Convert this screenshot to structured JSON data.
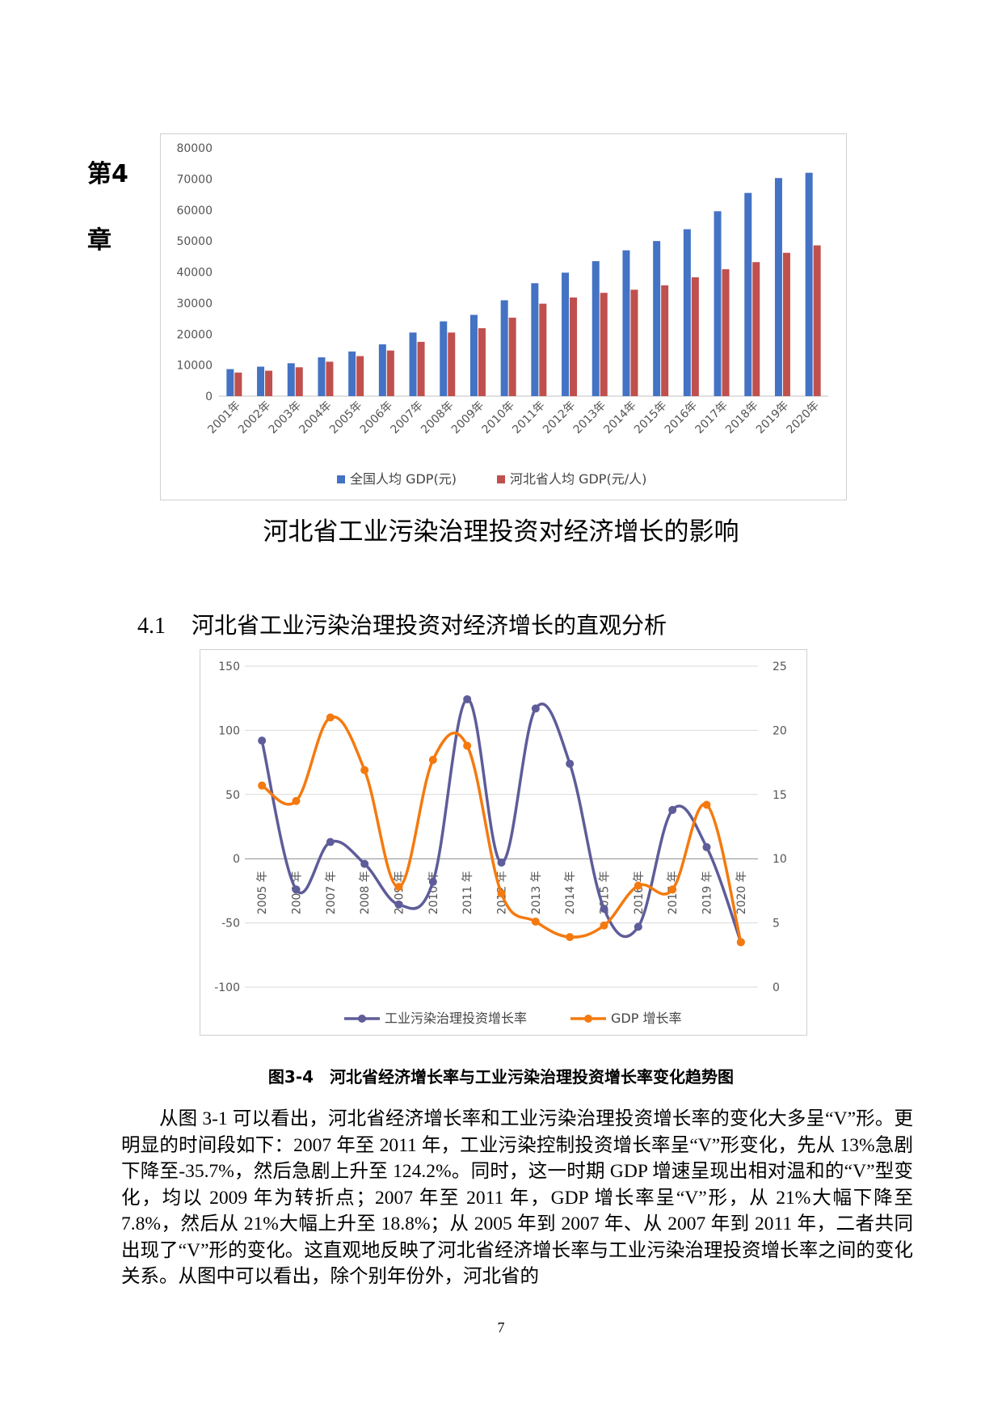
{
  "chapter_label": {
    "line1": "第4",
    "line2": "章"
  },
  "chapter_title": "河北省工业污染治理投资对经济增长的影响",
  "section": {
    "number": "4.1",
    "title": "河北省工业污染治理投资对经济增长的直观分析"
  },
  "figure_caption": "图3-4　河北省经济增长率与工业污染治理投资增长率变化趋势图",
  "body_paragraph": "从图 3-1 可以看出，河北省经济增长率和工业污染治理投资增长率的变化大多呈“V”形。更明显的时间段如下：2007 年至 2011 年，工业污染控制投资增长率呈“V”形变化，先从 13%急剧下降至-35.7%，然后急剧上升至 124.2%。同时，这一时期 GDP 增速呈现出相对温和的“V”型变化，均以 2009 年为转折点；2007 年至 2011 年，GDP 增长率呈“V”形，从 21%大幅下降至 7.8%，然后从 21%大幅上升至 18.8%；从 2005 年到 2007 年、从 2007 年到 2011 年，二者共同出现了“V”形的变化。这直观地反映了河北省经济增长率与工业污染治理投资增长率之间的变化关系。从图中可以看出，除个别年份外，河北省的",
  "page_number": "7",
  "colors": {
    "blue": "#4472C4",
    "red": "#C0504D",
    "purple": "#5E5C99",
    "orange": "#F47A0F",
    "grid": "#d9d9d9"
  },
  "chart_data": [
    {
      "type": "bar",
      "categories": [
        "2001年",
        "2002年",
        "2003年",
        "2004年",
        "2005年",
        "2006年",
        "2007年",
        "2008年",
        "2009年",
        "2010年",
        "2011年",
        "2012年",
        "2013年",
        "2014年",
        "2015年",
        "2016年",
        "2017年",
        "2018年",
        "2019年",
        "2020年"
      ],
      "series": [
        {
          "name": "全国人均 GDP(元)",
          "values": [
            8700,
            9500,
            10600,
            12500,
            14400,
            16700,
            20500,
            24100,
            26200,
            30900,
            36400,
            39800,
            43500,
            47000,
            50000,
            53800,
            59600,
            65500,
            70300,
            72000
          ]
        },
        {
          "name": "河北省人均 GDP(元/人)",
          "values": [
            7600,
            8200,
            9300,
            11100,
            12900,
            14700,
            17500,
            20500,
            21900,
            25300,
            29800,
            31800,
            33300,
            34300,
            35700,
            38300,
            40900,
            43200,
            46200,
            48600
          ]
        }
      ],
      "yticks": [
        "0",
        "10000",
        "20000",
        "30000",
        "40000",
        "50000",
        "60000",
        "70000",
        "80000"
      ],
      "ylim": [
        0,
        80000
      ],
      "legend": "bottom"
    },
    {
      "type": "line",
      "categories": [
        "2005 年",
        "2006 年",
        "2007 年",
        "2008 年",
        "2009 年",
        "2010 年",
        "2011 年",
        "2012 年",
        "2013 年",
        "2014 年",
        "2015 年",
        "2016 年",
        "2017 年",
        "2019 年",
        "2020 年"
      ],
      "series": [
        {
          "name": "工业污染治理投资增长率",
          "axis": "left",
          "values": [
            92,
            -24,
            13,
            -4,
            -35.7,
            -18,
            124.2,
            -3,
            117,
            74,
            -39,
            -53,
            38,
            9,
            -65
          ]
        },
        {
          "name": "GDP 增长率",
          "axis": "right",
          "values": [
            15.7,
            14.5,
            21,
            16.9,
            7.8,
            17.7,
            18.8,
            7.3,
            5.1,
            3.9,
            4.8,
            7.9,
            7.6,
            14.2,
            3.5
          ]
        }
      ],
      "y_left_ticks": [
        "150",
        "100",
        "50",
        "0",
        "-50",
        "-100"
      ],
      "y_left_lim": [
        -100,
        150
      ],
      "y_right_ticks": [
        "25",
        "20",
        "15",
        "10",
        "5",
        "0"
      ],
      "y_right_lim": [
        0,
        25
      ],
      "legend": "bottom"
    }
  ]
}
